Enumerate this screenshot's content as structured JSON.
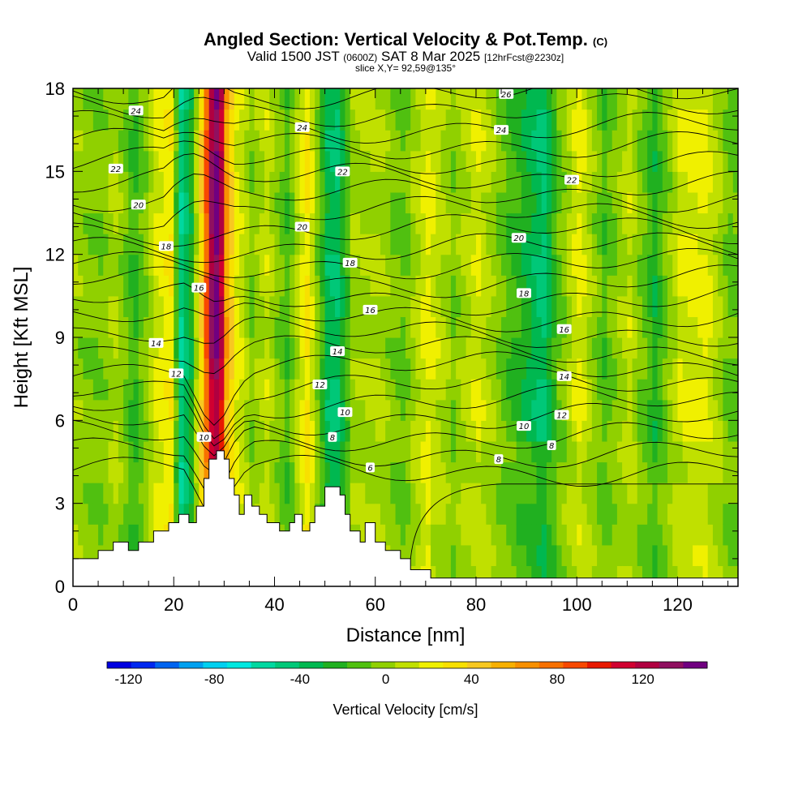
{
  "header": {
    "title": "Angled Section: Vertical Velocity & Pot.Temp.",
    "copyright": "(C)",
    "valid_a": "Valid 1500 JST",
    "valid_zulu": "(0600Z)",
    "valid_b": "SAT 8 Mar 2025",
    "forecast": "[12hrFcst@2230z]",
    "slice": "slice X,Y= 92,59@135°"
  },
  "chart_data": {
    "type": "heatmap",
    "xlabel": "Distance [nm]",
    "ylabel": "Height [Kft MSL]",
    "xlim": [
      0,
      132
    ],
    "ylim": [
      0,
      18
    ],
    "x_ticks": [
      "0",
      "20",
      "40",
      "60",
      "80",
      "100",
      "120"
    ],
    "y_ticks": [
      "0",
      "3",
      "6",
      "9",
      "12",
      "15",
      "18"
    ],
    "colorbar": {
      "title": "Vertical Velocity [cm/s]",
      "tick_labels": [
        "-120",
        "-80",
        "-40",
        "0",
        "40",
        "80",
        "120"
      ],
      "range": [
        -130,
        150
      ],
      "colors": [
        "#0000e0",
        "#0028f0",
        "#0064f0",
        "#00a0f0",
        "#00d0f0",
        "#00e8e0",
        "#00d8a0",
        "#00c878",
        "#00b850",
        "#20b020",
        "#50c010",
        "#90d000",
        "#c0e000",
        "#f0f000",
        "#f8e000",
        "#f8c820",
        "#f8b000",
        "#f89000",
        "#f87000",
        "#f84800",
        "#e81800",
        "#d00030",
        "#b00040",
        "#901060",
        "#700080"
      ]
    },
    "series": [
      {
        "name": "Vertical Velocity",
        "units": "cm/s",
        "x_columns": [
          0,
          5,
          8,
          12,
          16,
          19,
          21,
          23,
          25,
          27,
          28.5,
          30,
          32,
          35,
          38,
          42,
          46,
          50,
          52,
          55,
          60,
          65,
          70,
          75,
          80,
          85,
          90,
          93,
          96,
          100,
          105,
          110,
          115,
          120,
          125,
          130
        ],
        "column_values": [
          0,
          -5,
          5,
          -20,
          15,
          25,
          -50,
          -25,
          40,
          130,
          150,
          60,
          20,
          -5,
          10,
          -15,
          30,
          -35,
          -40,
          0,
          5,
          -10,
          20,
          -5,
          15,
          -10,
          -30,
          -45,
          -10,
          20,
          -15,
          10,
          -25,
          15,
          20,
          -10
        ]
      },
      {
        "name": "Pot.Temp.",
        "units": "°C",
        "contour_labels": [
          {
            "value": "24",
            "x": 12.5,
            "y": 17.2
          },
          {
            "value": "22",
            "x": 8.5,
            "y": 15.1
          },
          {
            "value": "20",
            "x": 13,
            "y": 13.8
          },
          {
            "value": "18",
            "x": 18.5,
            "y": 12.3
          },
          {
            "value": "16",
            "x": 25,
            "y": 10.8
          },
          {
            "value": "14",
            "x": 16.5,
            "y": 8.8
          },
          {
            "value": "12",
            "x": 20.5,
            "y": 7.7
          },
          {
            "value": "10",
            "x": 26,
            "y": 5.4
          },
          {
            "value": "24",
            "x": 45.5,
            "y": 16.6
          },
          {
            "value": "22",
            "x": 53.5,
            "y": 15.0
          },
          {
            "value": "20",
            "x": 45.5,
            "y": 13.0
          },
          {
            "value": "18",
            "x": 55,
            "y": 11.7
          },
          {
            "value": "16",
            "x": 59,
            "y": 10.0
          },
          {
            "value": "14",
            "x": 52.5,
            "y": 8.5
          },
          {
            "value": "12",
            "x": 49,
            "y": 7.3
          },
          {
            "value": "10",
            "x": 54,
            "y": 6.3
          },
          {
            "value": "8",
            "x": 51.5,
            "y": 5.4
          },
          {
            "value": "6",
            "x": 59,
            "y": 4.3
          },
          {
            "value": "26",
            "x": 86,
            "y": 17.8
          },
          {
            "value": "24",
            "x": 85,
            "y": 16.5
          },
          {
            "value": "22",
            "x": 99,
            "y": 14.7
          },
          {
            "value": "20",
            "x": 88.5,
            "y": 12.6
          },
          {
            "value": "18",
            "x": 89.5,
            "y": 10.6
          },
          {
            "value": "16",
            "x": 97.5,
            "y": 9.3
          },
          {
            "value": "14",
            "x": 97.5,
            "y": 7.6
          },
          {
            "value": "12",
            "x": 97,
            "y": 6.2
          },
          {
            "value": "10",
            "x": 89.5,
            "y": 5.8
          },
          {
            "value": "8",
            "x": 95,
            "y": 5.1
          },
          {
            "value": "8",
            "x": 84.5,
            "y": 4.6
          }
        ]
      }
    ],
    "terrain_height": [
      [
        0,
        1.0
      ],
      [
        5,
        1.0
      ],
      [
        5,
        1.3
      ],
      [
        8,
        1.3
      ],
      [
        8,
        1.6
      ],
      [
        11,
        1.6
      ],
      [
        11,
        1.3
      ],
      [
        13,
        1.3
      ],
      [
        13,
        1.6
      ],
      [
        16,
        1.6
      ],
      [
        16,
        2.0
      ],
      [
        19,
        2.0
      ],
      [
        19,
        2.3
      ],
      [
        21,
        2.3
      ],
      [
        21,
        2.6
      ],
      [
        23,
        2.6
      ],
      [
        23,
        2.3
      ],
      [
        24.5,
        2.3
      ],
      [
        24.5,
        2.9
      ],
      [
        26,
        2.9
      ],
      [
        26,
        3.9
      ],
      [
        27,
        3.9
      ],
      [
        27,
        4.6
      ],
      [
        28.5,
        4.6
      ],
      [
        28.5,
        4.9
      ],
      [
        30,
        4.9
      ],
      [
        30,
        4.6
      ],
      [
        31,
        4.6
      ],
      [
        31,
        3.9
      ],
      [
        32,
        3.9
      ],
      [
        32,
        3.3
      ],
      [
        33,
        3.3
      ],
      [
        33,
        2.6
      ],
      [
        34,
        2.6
      ],
      [
        34,
        3.3
      ],
      [
        35.5,
        3.3
      ],
      [
        35.5,
        2.9
      ],
      [
        37,
        2.9
      ],
      [
        37,
        2.6
      ],
      [
        38.5,
        2.6
      ],
      [
        38.5,
        2.3
      ],
      [
        41,
        2.3
      ],
      [
        41,
        2.0
      ],
      [
        43,
        2.0
      ],
      [
        43,
        2.3
      ],
      [
        44,
        2.3
      ],
      [
        44,
        2.6
      ],
      [
        45.5,
        2.6
      ],
      [
        45.5,
        2.0
      ],
      [
        47,
        2.0
      ],
      [
        47,
        2.3
      ],
      [
        48,
        2.3
      ],
      [
        48,
        2.9
      ],
      [
        50,
        2.9
      ],
      [
        50,
        3.6
      ],
      [
        53,
        3.6
      ],
      [
        53,
        3.3
      ],
      [
        54,
        3.3
      ],
      [
        54,
        2.6
      ],
      [
        55,
        2.6
      ],
      [
        55,
        2.0
      ],
      [
        57,
        2.0
      ],
      [
        57,
        1.6
      ],
      [
        58,
        1.6
      ],
      [
        58,
        2.3
      ],
      [
        60,
        2.3
      ],
      [
        60,
        1.6
      ],
      [
        62,
        1.6
      ],
      [
        62,
        1.3
      ],
      [
        65,
        1.3
      ],
      [
        65,
        1.0
      ],
      [
        67,
        1.0
      ],
      [
        67,
        0.6
      ],
      [
        71,
        0.6
      ],
      [
        71,
        0.3
      ],
      [
        73,
        0.3
      ],
      [
        73,
        0.3
      ],
      [
        132,
        0.3
      ],
      [
        132,
        0
      ]
    ]
  }
}
